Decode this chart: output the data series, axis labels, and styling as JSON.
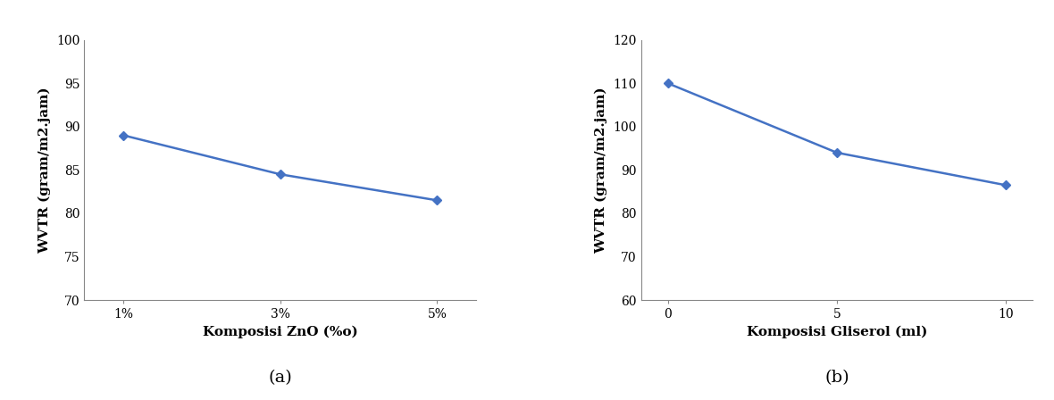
{
  "plot_a": {
    "x_values": [
      1,
      3,
      5
    ],
    "x_labels": [
      "1%",
      "3%",
      "5%"
    ],
    "y_values": [
      89.0,
      84.5,
      81.5
    ],
    "ylim": [
      70,
      100
    ],
    "yticks": [
      70,
      75,
      80,
      85,
      90,
      95,
      100
    ],
    "xlabel": "Komposisi ZnO (%o)",
    "ylabel": "WVTR (gram/m2.jam)",
    "label": "(a)"
  },
  "plot_b": {
    "x_values": [
      0,
      5,
      10
    ],
    "x_labels": [
      "0",
      "5",
      "10"
    ],
    "y_values": [
      110.0,
      94.0,
      86.5
    ],
    "ylim": [
      60,
      120
    ],
    "yticks": [
      60,
      70,
      80,
      90,
      100,
      110,
      120
    ],
    "xlabel": "Komposisi Gliserol (ml)",
    "ylabel": "WVTR (gram/m2.jam)",
    "label": "(b)"
  },
  "line_color": "#4472c4",
  "marker": "D",
  "marker_size": 5,
  "line_width": 1.8,
  "font_family": "serif",
  "label_fontsize": 11,
  "tick_fontsize": 10,
  "sublabel_fontsize": 14
}
